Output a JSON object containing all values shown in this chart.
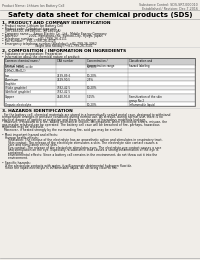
{
  "bg_color": "#f0ede8",
  "header_left": "Product Name: Lithium Ion Battery Cell",
  "header_right_line1": "Substance Control: SDS-SRT-000010",
  "header_right_line2": "Established / Revision: Dec.7.2016",
  "title": "Safety data sheet for chemical products (SDS)",
  "s1_title": "1. PRODUCT AND COMPANY IDENTIFICATION",
  "s1_lines": [
    "• Product name: Lithium Ion Battery Cell",
    "• Product code: Cylindrical-type cell",
    "   (IHF18650U, IHF18650L, IHF18650A)",
    "• Company name:    Sanyo Electric Co., Ltd., Mobile Energy Company",
    "• Address:           2001, Kamahara-cho, Sumoto-City, Hyogo, Japan",
    "• Telephone number:    +81-(799)-26-4111",
    "• Fax number:   +81-(799)-26-4125",
    "• Emergency telephone number (Weekday): +81-799-26-3962",
    "                                 (Night and holiday): +81-799-26-3101"
  ],
  "s2_title": "2. COMPOSITION / INFORMATION ON INGREDIENTS",
  "s2_lines": [
    "• Substance or preparation: Preparation",
    "• Information about the chemical nature of product:"
  ],
  "table_rows": [
    [
      "Lithium cobalt oxide",
      "",
      "60-90%",
      ""
    ],
    [
      "(LiMnO₂(MnO₂))",
      "",
      "",
      ""
    ],
    [
      "Iron",
      "7439-89-6",
      "10-20%",
      ""
    ],
    [
      "Aluminum",
      "7429-90-5",
      "2-5%",
      ""
    ],
    [
      "Graphite",
      "",
      "",
      ""
    ],
    [
      "(Flake graphite)",
      "7782-42-5",
      "10-20%",
      ""
    ],
    [
      "(Artificial graphite)",
      "7782-42-5",
      "",
      ""
    ],
    [
      "Copper",
      "7440-50-8",
      "5-15%",
      "Sensitization of the skin\ngroup No.2"
    ],
    [
      "Organic electrolyte",
      "",
      "10-20%",
      "Inflammable liquid"
    ]
  ],
  "s3_title": "3. HAZARDS IDENTIFICATION",
  "s3_lines": [
    "  For the battery cell, chemical materials are stored in a hermetically sealed metal case, designed to withstand",
    "temperature changes in pressure conditions during normal use. As a result, during normal use, there is no",
    "physical danger of ignition or explosion and there is no danger of hazardous materials leakage.",
    "  However, if exposed to a fire, added mechanical shocks, decomposed, when electrolyte enters, misuse, the",
    "gas maybe released can be operated. The battery cell case will be breached of fire, perhaps, hazardous",
    "materials may be released.",
    "  Moreover, if heated strongly by the surrounding fire, acid gas may be emitted.",
    "",
    "• Most important hazard and effects:",
    "   Human health effects:",
    "      Inhalation: The release of the electrolyte has an anaesthetic action and stimulates in respiratory tract.",
    "      Skin contact: The release of the electrolyte stimulates a skin. The electrolyte skin contact causes a",
    "      sore and stimulation on the skin.",
    "      Eye contact: The release of the electrolyte stimulates eyes. The electrolyte eye contact causes a sore",
    "      and stimulation on the eye. Especially, a substance that causes a strong inflammation of the eye is",
    "      contained.",
    "      Environmental effects: Since a battery cell remains in the environment, do not throw out it into the",
    "      environment.",
    "",
    "• Specific hazards:",
    "   If the electrolyte contacts with water, it will generate detrimental hydrogen fluoride.",
    "   Since the liquid electrolyte is inflammable liquid, do not bring close to fire."
  ]
}
